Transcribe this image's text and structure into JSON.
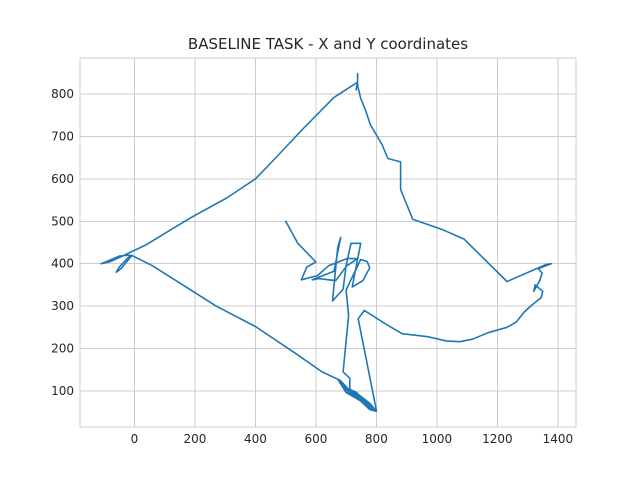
{
  "chart_data": {
    "type": "line",
    "title": "BASELINE TASK - X and Y coordinates",
    "xlabel": "",
    "ylabel": "",
    "xlim": [
      -180,
      1460
    ],
    "ylim": [
      15,
      885
    ],
    "xticks": [
      0,
      200,
      400,
      600,
      800,
      1000,
      1200,
      1400
    ],
    "yticks": [
      100,
      200,
      300,
      400,
      500,
      600,
      700,
      800
    ],
    "grid": true,
    "legend": "none",
    "series": [
      {
        "color": "#1f77b4",
        "points": [
          [
            500,
            500
          ],
          [
            540,
            448
          ],
          [
            600,
            404
          ],
          [
            570,
            392
          ],
          [
            552,
            362
          ],
          [
            605,
            372
          ],
          [
            642,
            395
          ],
          [
            702,
            412
          ],
          [
            738,
            412
          ],
          [
            702,
            395
          ],
          [
            665,
            360
          ],
          [
            610,
            365
          ],
          [
            588,
            362
          ],
          [
            660,
            382
          ],
          [
            682,
            462
          ],
          [
            672,
            438
          ],
          [
            655,
            312
          ],
          [
            690,
            340
          ],
          [
            700,
            395
          ],
          [
            716,
            448
          ],
          [
            748,
            448
          ],
          [
            720,
            345
          ],
          [
            755,
            360
          ],
          [
            778,
            390
          ],
          [
            770,
            405
          ],
          [
            748,
            410
          ],
          [
            700,
            338
          ],
          [
            708,
            278
          ],
          [
            690,
            145
          ],
          [
            712,
            130
          ],
          [
            712,
            100
          ],
          [
            740,
            82
          ],
          [
            778,
            56
          ],
          [
            800,
            52
          ],
          [
            740,
            80
          ],
          [
            700,
            96
          ],
          [
            672,
            128
          ],
          [
            700,
            108
          ],
          [
            742,
            88
          ],
          [
            800,
            52
          ],
          [
            770,
            62
          ],
          [
            742,
            80
          ],
          [
            708,
            102
          ],
          [
            680,
            124
          ],
          [
            696,
            108
          ],
          [
            735,
            95
          ],
          [
            780,
            70
          ],
          [
            800,
            52
          ],
          [
            760,
            80
          ],
          [
            710,
            95
          ],
          [
            680,
            118
          ],
          [
            700,
            108
          ],
          [
            735,
            96
          ],
          [
            760,
            72
          ],
          [
            800,
            54
          ],
          [
            740,
            270
          ],
          [
            760,
            290
          ],
          [
            830,
            258
          ],
          [
            885,
            235
          ],
          [
            970,
            228
          ],
          [
            1030,
            218
          ],
          [
            1075,
            216
          ],
          [
            1118,
            222
          ],
          [
            1168,
            237
          ],
          [
            1232,
            250
          ],
          [
            1262,
            262
          ],
          [
            1290,
            287
          ],
          [
            1310,
            300
          ],
          [
            1345,
            320
          ],
          [
            1350,
            335
          ],
          [
            1325,
            350
          ],
          [
            1320,
            335
          ],
          [
            1340,
            360
          ],
          [
            1348,
            378
          ],
          [
            1335,
            388
          ],
          [
            1360,
            395
          ],
          [
            1378,
            400
          ],
          [
            1360,
            398
          ],
          [
            1232,
            358
          ],
          [
            1165,
            405
          ],
          [
            1090,
            458
          ],
          [
            1020,
            480
          ],
          [
            920,
            505
          ],
          [
            880,
            575
          ],
          [
            880,
            640
          ],
          [
            838,
            648
          ],
          [
            818,
            682
          ],
          [
            780,
            728
          ],
          [
            765,
            760
          ],
          [
            748,
            790
          ],
          [
            738,
            820
          ],
          [
            738,
            848
          ],
          [
            738,
            830
          ],
          [
            733,
            810
          ],
          [
            738,
            828
          ],
          [
            660,
            792
          ],
          [
            560,
            720
          ],
          [
            465,
            648
          ],
          [
            400,
            600
          ],
          [
            305,
            555
          ],
          [
            190,
            510
          ],
          [
            120,
            480
          ],
          [
            40,
            445
          ],
          [
            -40,
            418
          ],
          [
            -80,
            405
          ],
          [
            -110,
            400
          ],
          [
            -50,
            418
          ],
          [
            -20,
            420
          ],
          [
            -10,
            418
          ],
          [
            -45,
            388
          ],
          [
            -60,
            380
          ],
          [
            -50,
            392
          ],
          [
            -20,
            415
          ],
          [
            -10,
            420
          ],
          [
            60,
            395
          ],
          [
            160,
            350
          ],
          [
            270,
            300
          ],
          [
            400,
            252
          ],
          [
            530,
            190
          ],
          [
            620,
            145
          ],
          [
            680,
            125
          ],
          [
            720,
            95
          ],
          [
            760,
            75
          ],
          [
            800,
            52
          ]
        ]
      }
    ]
  }
}
